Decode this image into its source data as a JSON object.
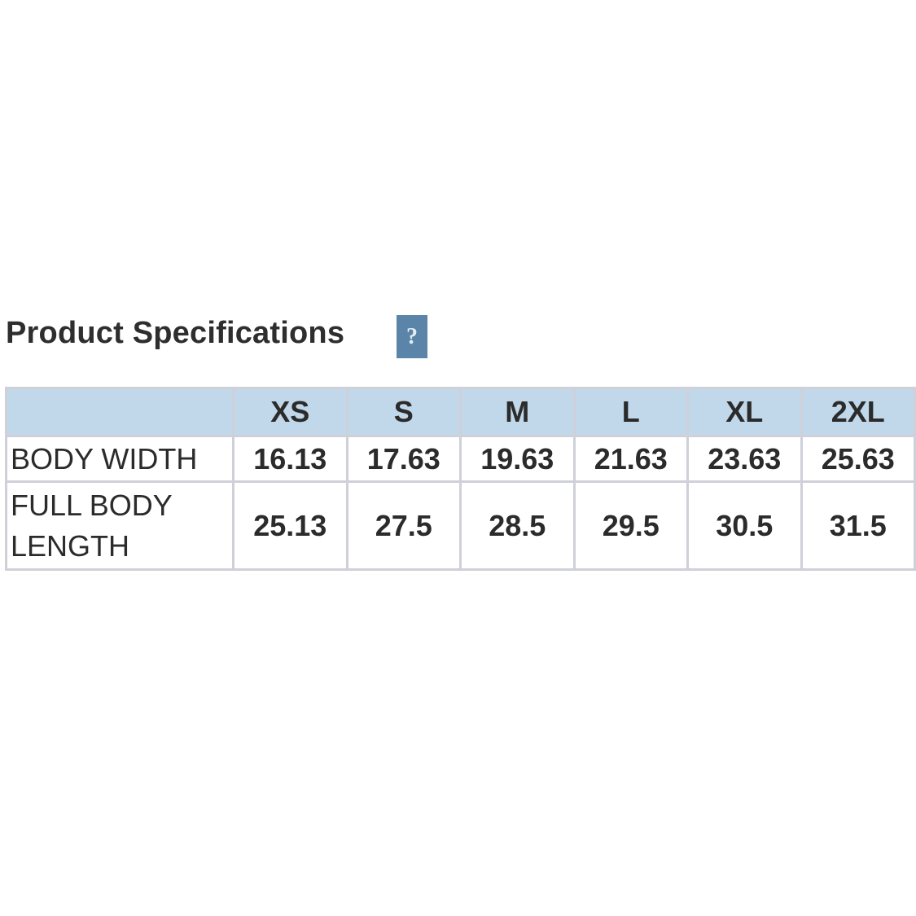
{
  "title": "Product Specifications",
  "help_label": "?",
  "colors": {
    "header_bg": "#c0d8ea",
    "help_bg": "#5a85a8",
    "border": "#cfd0da"
  },
  "table": {
    "columns": [
      "",
      "XS",
      "S",
      "M",
      "L",
      "XL",
      "2XL"
    ],
    "rows": [
      {
        "label": "BODY WIDTH",
        "values": [
          "16.13",
          "17.63",
          "19.63",
          "21.63",
          "23.63",
          "25.63"
        ]
      },
      {
        "label": "FULL BODY LENGTH",
        "values": [
          "25.13",
          "27.5",
          "28.5",
          "29.5",
          "30.5",
          "31.5"
        ]
      }
    ]
  }
}
